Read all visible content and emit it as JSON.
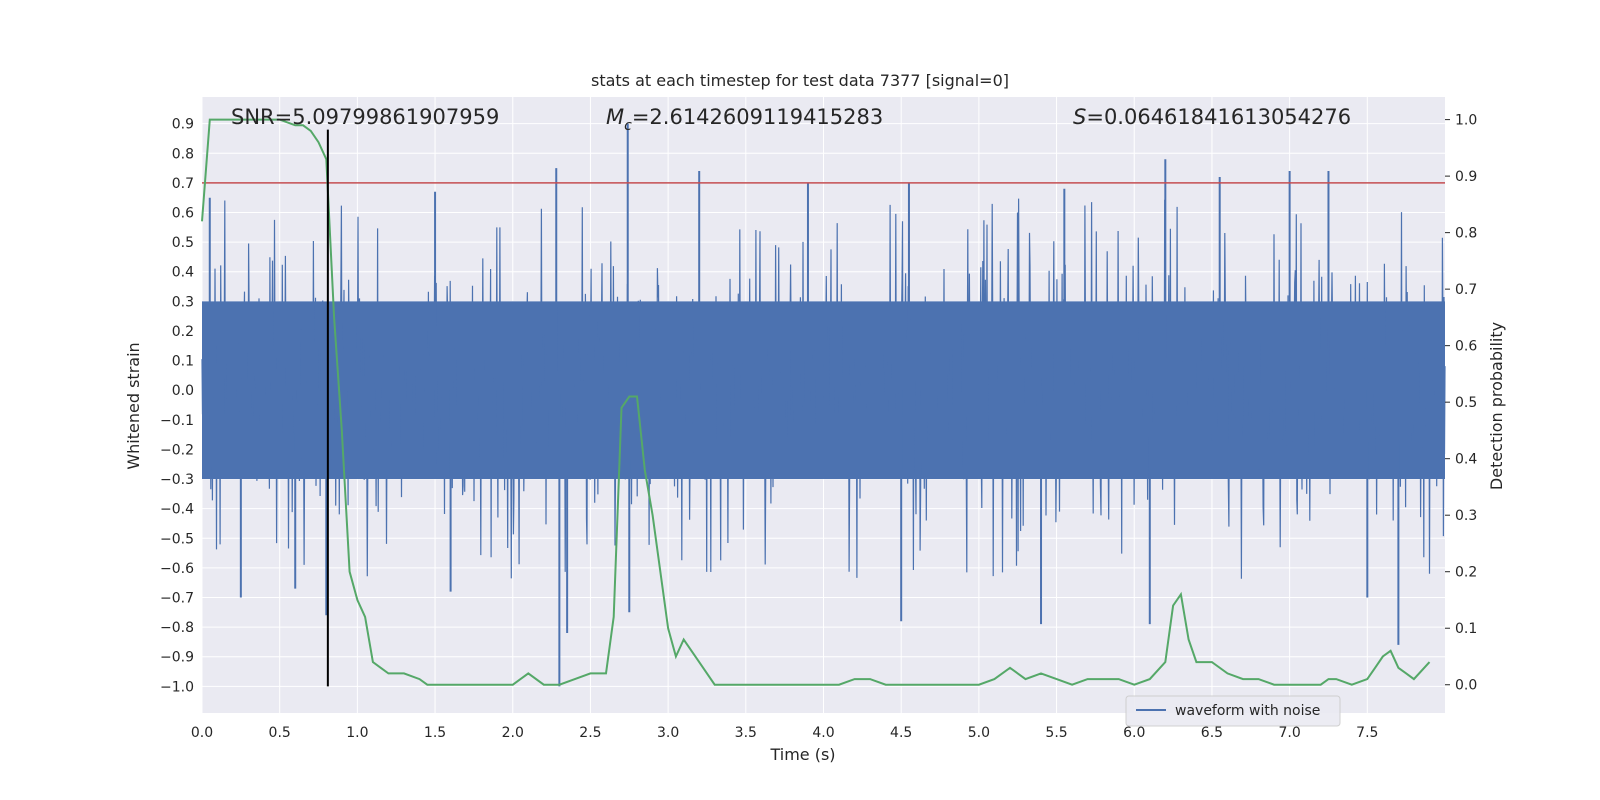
{
  "chart_data": {
    "type": "line",
    "title": "stats at each timestep for test data 7377 [signal=0]",
    "xlabel": "Time (s)",
    "ylabel": "Whitened strain",
    "y2label": "Detection probability",
    "xlim": [
      0.0,
      8.0
    ],
    "ylim": [
      -1.09,
      0.99
    ],
    "y2lim": [
      -0.05,
      1.04
    ],
    "xticks": [
      "0.0",
      "0.5",
      "1.0",
      "1.5",
      "2.0",
      "2.5",
      "3.0",
      "3.5",
      "4.0",
      "4.5",
      "5.0",
      "5.5",
      "6.0",
      "6.5",
      "7.0",
      "7.5"
    ],
    "yticks": [
      "0.9",
      "0.8",
      "0.7",
      "0.6",
      "0.5",
      "0.4",
      "0.3",
      "0.2",
      "0.1",
      "0.0",
      "−0.1",
      "−0.2",
      "−0.3",
      "−0.4",
      "−0.5",
      "−0.6",
      "−0.7",
      "−0.8",
      "−0.9",
      "−1.0"
    ],
    "y2ticks": [
      "1.0",
      "0.9",
      "0.8",
      "0.7",
      "0.6",
      "0.5",
      "0.4",
      "0.3",
      "0.2",
      "0.1",
      "0.0"
    ],
    "grid": true,
    "legend": {
      "placement": "lower-right",
      "entries": [
        "waveform with noise"
      ]
    },
    "annotations": {
      "snr": "SNR=5.09799861907959",
      "mc_symbol": "M",
      "mc_sub": "c",
      "mc_value": "=2.6142609119415283",
      "s_symbol": "S",
      "s_value": "=0.06461841613054276"
    },
    "threshold_y": 0.7,
    "marker_x": 0.81,
    "marker_ylim": [
      -1.0,
      0.88
    ],
    "colors": {
      "background": "#eaeaf2",
      "grid": "#ffffff",
      "waveform": "#4c72b0",
      "probability": "#55a868",
      "threshold": "#c44e52",
      "marker": "#000000"
    },
    "series": [
      {
        "name": "waveform with noise",
        "axis": "left",
        "style": "dense-noise",
        "band_abs": 0.3,
        "spike_peaks": [
          {
            "x": 2.74,
            "y": 0.9
          },
          {
            "x": 2.28,
            "y": 0.75
          },
          {
            "x": 6.2,
            "y": 0.78
          },
          {
            "x": 7.0,
            "y": 0.74
          },
          {
            "x": 7.25,
            "y": 0.74
          },
          {
            "x": 3.2,
            "y": 0.74
          },
          {
            "x": 5.55,
            "y": 0.68
          },
          {
            "x": 6.55,
            "y": 0.72
          },
          {
            "x": 1.5,
            "y": 0.67
          },
          {
            "x": 3.9,
            "y": 0.7
          },
          {
            "x": 4.55,
            "y": 0.7
          },
          {
            "x": 0.05,
            "y": 0.65
          },
          {
            "x": 2.3,
            "y": -1.0
          },
          {
            "x": 2.35,
            "y": -0.82
          },
          {
            "x": 7.7,
            "y": -0.86
          },
          {
            "x": 4.5,
            "y": -0.78
          },
          {
            "x": 6.1,
            "y": -0.79
          },
          {
            "x": 5.4,
            "y": -0.79
          },
          {
            "x": 0.8,
            "y": -0.76
          },
          {
            "x": 0.25,
            "y": -0.7
          },
          {
            "x": 0.6,
            "y": -0.67
          },
          {
            "x": 1.6,
            "y": -0.68
          },
          {
            "x": 2.75,
            "y": -0.75
          },
          {
            "x": 7.5,
            "y": -0.7
          }
        ]
      },
      {
        "name": "detection probability",
        "axis": "right",
        "x": [
          0.0,
          0.05,
          0.1,
          0.2,
          0.3,
          0.4,
          0.5,
          0.6,
          0.65,
          0.7,
          0.75,
          0.8,
          0.85,
          0.9,
          0.95,
          1.0,
          1.05,
          1.1,
          1.2,
          1.3,
          1.4,
          1.45,
          1.5,
          1.6,
          1.75,
          1.8,
          1.9,
          2.0,
          2.05,
          2.1,
          2.2,
          2.3,
          2.4,
          2.5,
          2.6,
          2.65,
          2.7,
          2.75,
          2.8,
          2.85,
          2.9,
          3.0,
          3.05,
          3.1,
          3.2,
          3.3,
          3.4,
          3.5,
          3.6,
          3.7,
          3.8,
          3.9,
          4.0,
          4.1,
          4.2,
          4.3,
          4.4,
          4.5,
          4.6,
          4.7,
          4.8,
          4.9,
          5.0,
          5.1,
          5.2,
          5.25,
          5.3,
          5.4,
          5.5,
          5.6,
          5.7,
          5.8,
          5.9,
          6.0,
          6.1,
          6.2,
          6.25,
          6.3,
          6.35,
          6.4,
          6.5,
          6.6,
          6.7,
          6.8,
          6.9,
          7.0,
          7.1,
          7.2,
          7.25,
          7.3,
          7.4,
          7.5,
          7.55,
          7.6,
          7.65,
          7.7,
          7.75,
          7.8,
          7.9
        ],
        "values": [
          0.82,
          1.0,
          1.0,
          1.0,
          1.0,
          1.0,
          1.0,
          0.99,
          0.99,
          0.98,
          0.96,
          0.93,
          0.65,
          0.45,
          0.2,
          0.15,
          0.12,
          0.04,
          0.02,
          0.02,
          0.01,
          0.0,
          0.0,
          0.0,
          0.0,
          0.0,
          0.0,
          0.0,
          0.01,
          0.02,
          0.0,
          0.0,
          0.01,
          0.02,
          0.02,
          0.12,
          0.49,
          0.51,
          0.51,
          0.38,
          0.3,
          0.1,
          0.05,
          0.08,
          0.04,
          0.0,
          0.0,
          0.0,
          0.0,
          0.0,
          0.0,
          0.0,
          0.0,
          0.0,
          0.01,
          0.01,
          0.0,
          0.0,
          0.0,
          0.0,
          0.0,
          0.0,
          0.0,
          0.01,
          0.03,
          0.02,
          0.01,
          0.02,
          0.01,
          0.0,
          0.01,
          0.01,
          0.01,
          0.0,
          0.01,
          0.04,
          0.14,
          0.16,
          0.08,
          0.04,
          0.04,
          0.02,
          0.01,
          0.01,
          0.0,
          0.0,
          0.0,
          0.0,
          0.01,
          0.01,
          0.0,
          0.01,
          0.03,
          0.05,
          0.06,
          0.03,
          0.02,
          0.01,
          0.04
        ]
      }
    ]
  }
}
